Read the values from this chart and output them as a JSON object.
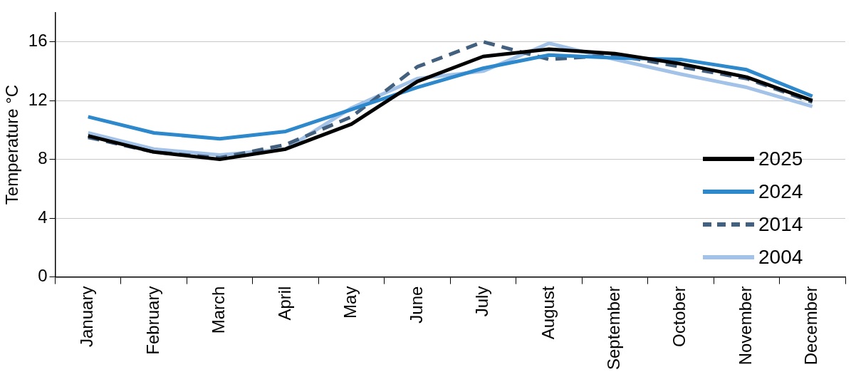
{
  "chart_data": {
    "type": "line",
    "ylabel": "Temperature °C",
    "categories": [
      "January",
      "February",
      "March",
      "April",
      "May",
      "June",
      "July",
      "August",
      "September",
      "October",
      "November",
      "December"
    ],
    "series": [
      {
        "name": "2025",
        "color": "#000000",
        "line_style": "solid",
        "values": [
          9.6,
          8.5,
          8.0,
          8.7,
          10.4,
          13.3,
          15.0,
          15.5,
          15.2,
          14.5,
          13.6,
          12.0
        ]
      },
      {
        "name": "2024",
        "color": "#2e88cc",
        "line_style": "solid",
        "values": [
          10.9,
          9.8,
          9.4,
          9.9,
          11.4,
          12.9,
          14.2,
          15.1,
          14.9,
          14.8,
          14.1,
          12.3
        ]
      },
      {
        "name": "2014",
        "color": "#44607f",
        "line_style": "dashed",
        "values": [
          9.5,
          8.5,
          8.1,
          9.0,
          10.9,
          14.3,
          16.0,
          14.8,
          15.1,
          14.3,
          13.5,
          11.9
        ]
      },
      {
        "name": "2004",
        "color": "#a3c2e8",
        "line_style": "solid",
        "values": [
          9.8,
          8.7,
          8.3,
          8.7,
          11.5,
          13.5,
          14.0,
          15.9,
          14.8,
          13.8,
          12.9,
          11.6
        ]
      }
    ],
    "ylim": [
      0,
      18
    ],
    "yticks": [
      0,
      4,
      8,
      12,
      16
    ],
    "grid": "y",
    "legend": "right",
    "marker": "none"
  }
}
